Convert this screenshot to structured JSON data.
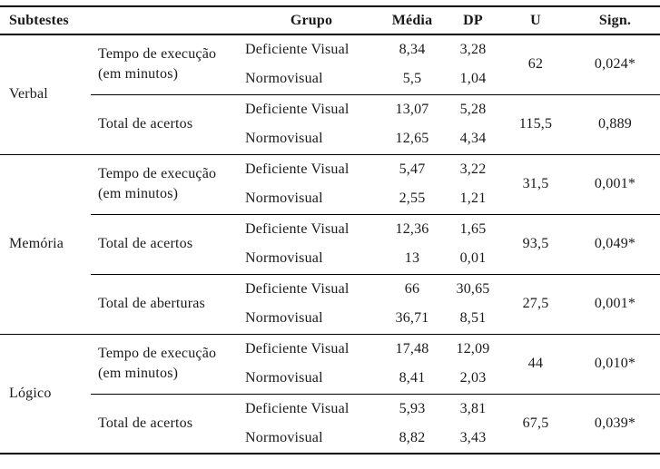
{
  "header": {
    "subtest": "Subtestes",
    "group": "Grupo",
    "mean": "Média",
    "sd": "DP",
    "u": "U",
    "sig": "Sign."
  },
  "sections": [
    {
      "name": "Verbal",
      "measures": [
        {
          "label": "Tempo de execução (em minutos)",
          "rows": [
            {
              "group": "Deficiente Visual",
              "mean": "8,34",
              "sd": "3,28"
            },
            {
              "group": "Normovisual",
              "mean": "5,5",
              "sd": "1,04"
            }
          ],
          "u": "62",
          "sig": "0,024*"
        },
        {
          "label": "Total de acertos",
          "rows": [
            {
              "group": "Deficiente Visual",
              "mean": "13,07",
              "sd": "5,28"
            },
            {
              "group": "Normovisual",
              "mean": "12,65",
              "sd": "4,34"
            }
          ],
          "u": "115,5",
          "sig": "0,889"
        }
      ]
    },
    {
      "name": "Memória",
      "measures": [
        {
          "label": "Tempo de execução (em minutos)",
          "rows": [
            {
              "group": "Deficiente Visual",
              "mean": "5,47",
              "sd": "3,22"
            },
            {
              "group": "Normovisual",
              "mean": "2,55",
              "sd": "1,21"
            }
          ],
          "u": "31,5",
          "sig": "0,001*"
        },
        {
          "label": "Total de acertos",
          "rows": [
            {
              "group": "Deficiente Visual",
              "mean": "12,36",
              "sd": "1,65"
            },
            {
              "group": "Normovisual",
              "mean": "13",
              "sd": "0,01"
            }
          ],
          "u": "93,5",
          "sig": "0,049*"
        },
        {
          "label": "Total de aberturas",
          "rows": [
            {
              "group": "Deficiente Visual",
              "mean": "66",
              "sd": "30,65"
            },
            {
              "group": "Normovisual",
              "mean": "36,71",
              "sd": "8,51"
            }
          ],
          "u": "27,5",
          "sig": "0,001*"
        }
      ]
    },
    {
      "name": "Lógico",
      "measures": [
        {
          "label": "Tempo de execução (em minutos)",
          "rows": [
            {
              "group": "Deficiente Visual",
              "mean": "17,48",
              "sd": "12,09"
            },
            {
              "group": "Normovisual",
              "mean": "8,41",
              "sd": "2,03"
            }
          ],
          "u": "44",
          "sig": "0,010*"
        },
        {
          "label": "Total de acertos",
          "rows": [
            {
              "group": "Deficiente Visual",
              "mean": "5,93",
              "sd": "3,81"
            },
            {
              "group": "Normovisual",
              "mean": "8,82",
              "sd": "3,43"
            }
          ],
          "u": "67,5",
          "sig": "0,039*"
        }
      ]
    }
  ]
}
